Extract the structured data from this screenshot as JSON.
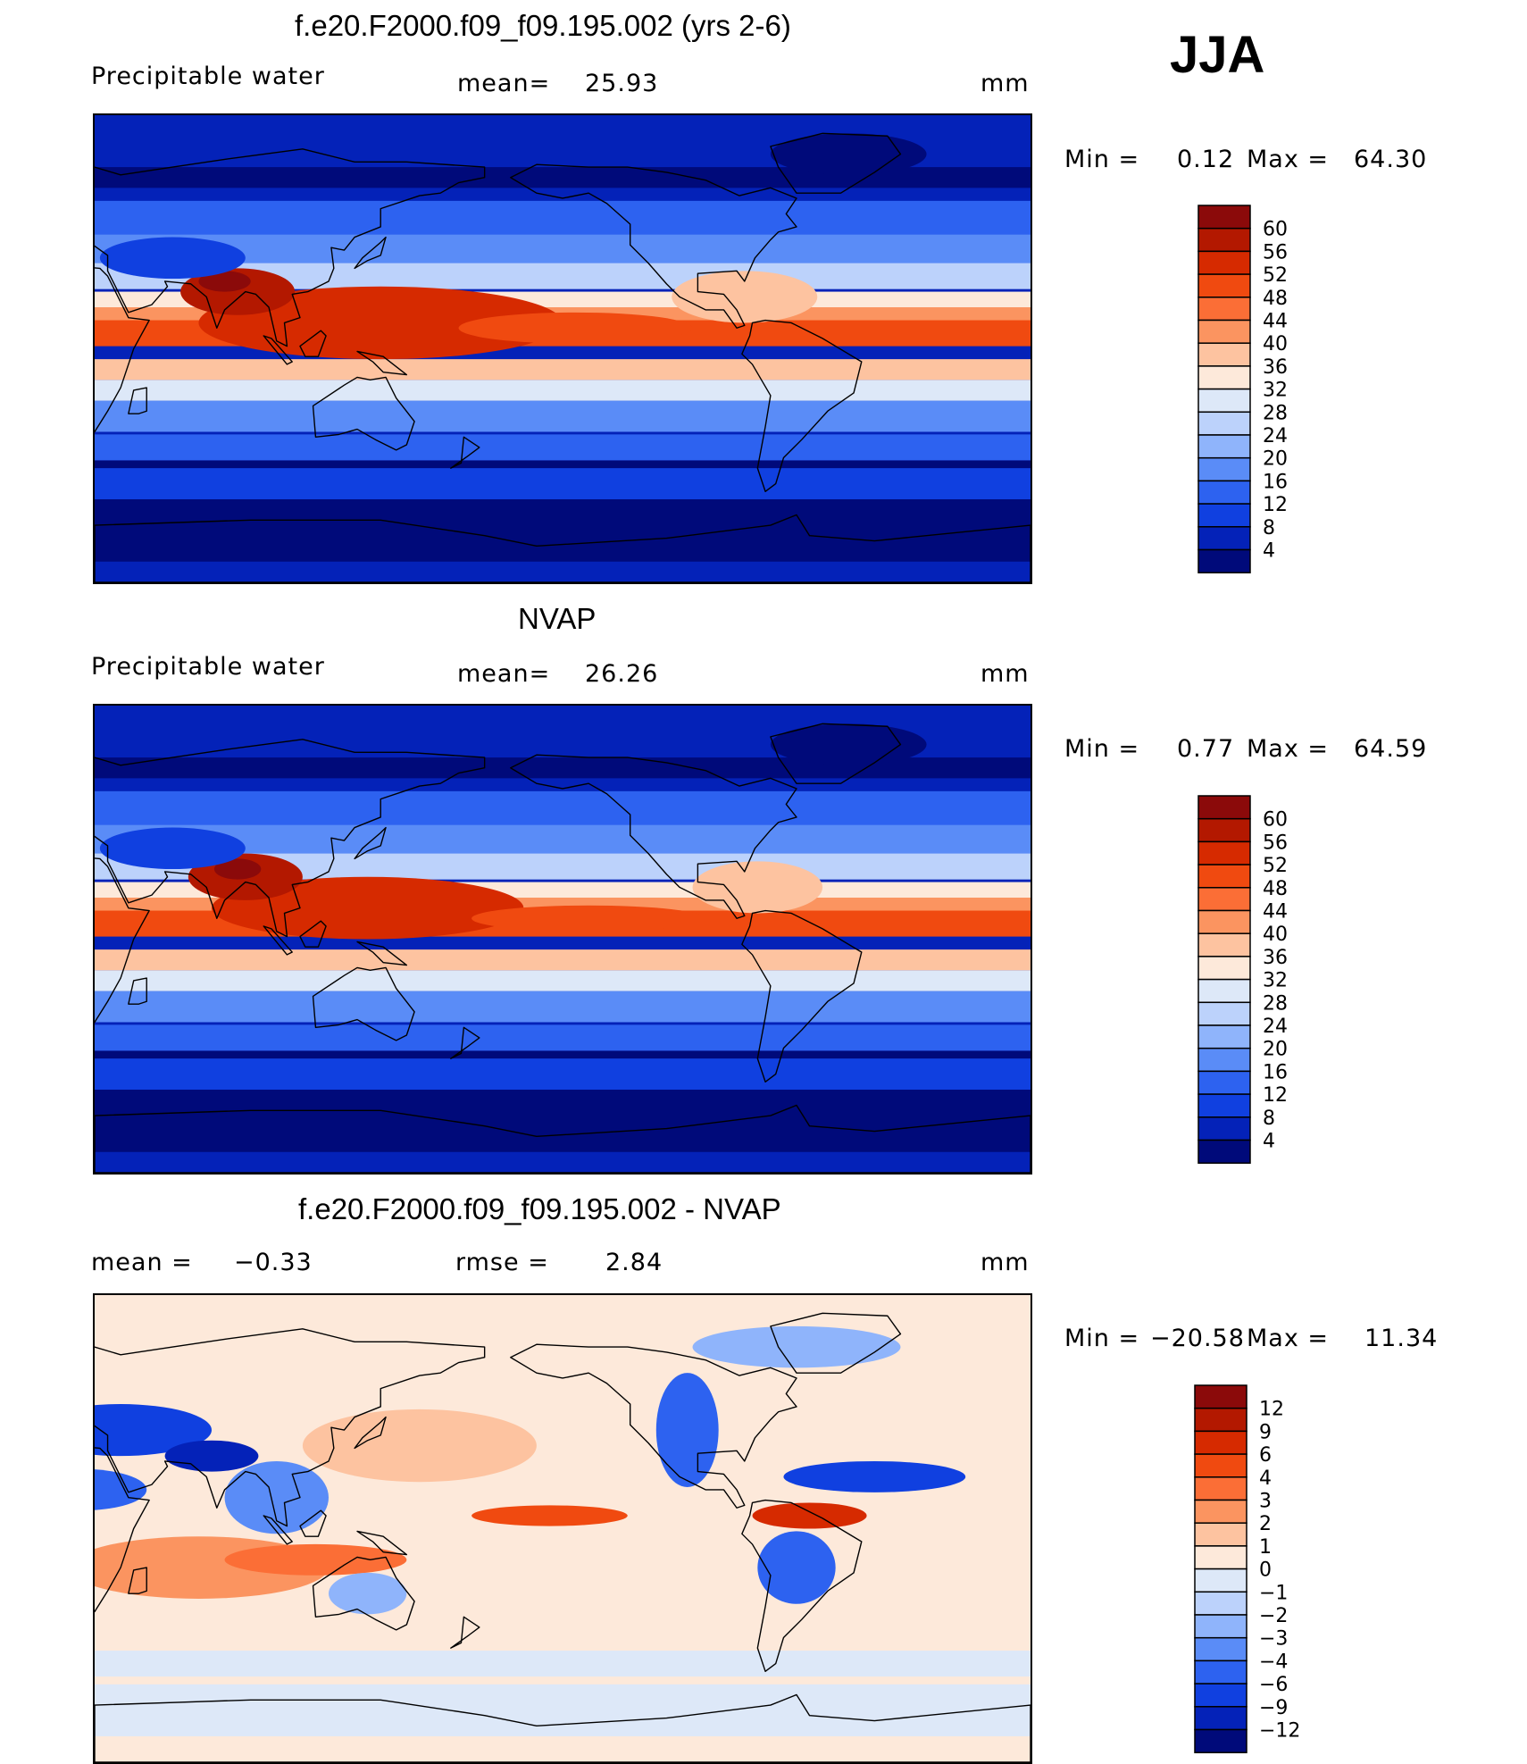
{
  "season": "JJA",
  "units_label": "mm",
  "chart_data": [
    {
      "type": "heatmap",
      "title": "f.e20.F2000.f09_f09.195.002 (yrs 2-6)",
      "variable_label": "Precipitable  water",
      "stat_label": "mean=",
      "stat_value": "25.93",
      "units": "mm",
      "min_label": "Min  =",
      "min_value": "0.12",
      "max_label": "Max  =",
      "max_value": "64.30",
      "colorbar_levels": [
        "60",
        "56",
        "52",
        "48",
        "44",
        "40",
        "36",
        "32",
        "28",
        "24",
        "20",
        "16",
        "12",
        "8",
        "4"
      ],
      "colorbar_colors": [
        "#8b0a0a",
        "#b31800",
        "#d62a00",
        "#f04a10",
        "#fb6e36",
        "#fb9460",
        "#fdc3a0",
        "#fde9da",
        "#dde8f8",
        "#bcd2fb",
        "#8fb4fb",
        "#5a8cf7",
        "#2d62f0",
        "#1040e0",
        "#0422b8",
        "#000a7a"
      ],
      "xlim": [
        30,
        390
      ],
      "ylim": [
        -90,
        90
      ],
      "grid": false
    },
    {
      "type": "heatmap",
      "title": "NVAP",
      "variable_label": "Precipitable  water",
      "stat_label": "mean=",
      "stat_value": "26.26",
      "units": "mm",
      "min_label": "Min  =",
      "min_value": "0.77",
      "max_label": "Max  =",
      "max_value": "64.59",
      "colorbar_levels": [
        "60",
        "56",
        "52",
        "48",
        "44",
        "40",
        "36",
        "32",
        "28",
        "24",
        "20",
        "16",
        "12",
        "8",
        "4"
      ],
      "colorbar_colors": [
        "#8b0a0a",
        "#b31800",
        "#d62a00",
        "#f04a10",
        "#fb6e36",
        "#fb9460",
        "#fdc3a0",
        "#fde9da",
        "#dde8f8",
        "#bcd2fb",
        "#8fb4fb",
        "#5a8cf7",
        "#2d62f0",
        "#1040e0",
        "#0422b8",
        "#000a7a"
      ],
      "xlim": [
        30,
        390
      ],
      "ylim": [
        -90,
        90
      ],
      "grid": false
    },
    {
      "type": "heatmap",
      "title": "f.e20.F2000.f09_f09.195.002 - NVAP",
      "stat_label": "mean  =",
      "stat_value": "−0.33",
      "rmse_label": "rmse  =",
      "rmse_value": "2.84",
      "units": "mm",
      "min_label": "Min  =",
      "min_value": "−20.58",
      "max_label": "Max  =",
      "max_value": "11.34",
      "colorbar_levels": [
        "12",
        "9",
        "6",
        "4",
        "3",
        "2",
        "1",
        "0",
        "−1",
        "−2",
        "−3",
        "−4",
        "−6",
        "−9",
        "−12"
      ],
      "colorbar_colors": [
        "#8b0a0a",
        "#b31800",
        "#d62a00",
        "#f04a10",
        "#fb6e36",
        "#fb9460",
        "#fdc3a0",
        "#fde9da",
        "#dde8f8",
        "#bcd2fb",
        "#8fb4fb",
        "#5a8cf7",
        "#2d62f0",
        "#1040e0",
        "#0422b8",
        "#000a7a"
      ],
      "xlim": [
        30,
        390
      ],
      "ylim": [
        -90,
        90
      ],
      "grid": false
    }
  ]
}
